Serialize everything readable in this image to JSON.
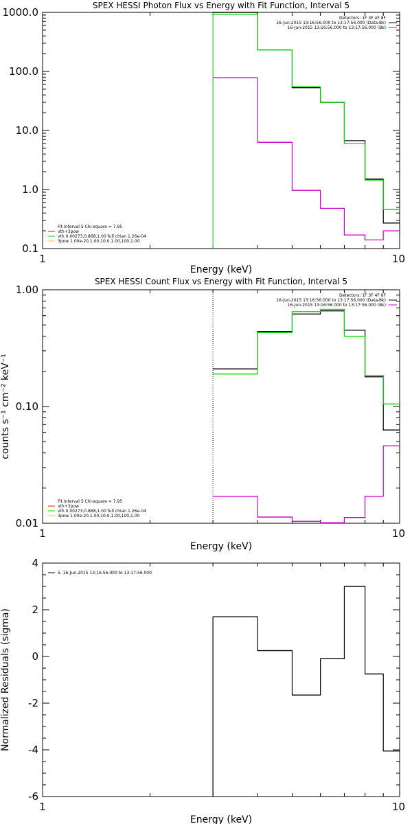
{
  "colors": {
    "data": "#000000",
    "bk": "#cc00cc",
    "total": "#00d800",
    "vth": "#ff0000",
    "pow": "#ffc800"
  },
  "chart_data": [
    {
      "type": "line",
      "title": "SPEX HESSI Photon Flux vs Energy with Fit Function, Interval 5",
      "xlabel": "Energy (keV)",
      "ylabel": "",
      "xscale": "log",
      "yscale": "log",
      "xlim": [
        1,
        10
      ],
      "ylim": [
        0.1,
        1000
      ],
      "x_ticks": [
        {
          "v": 1,
          "label": "1"
        },
        {
          "v": 10,
          "label": "10"
        }
      ],
      "y_ticks": [
        {
          "v": 0.1,
          "label": "0.1"
        },
        {
          "v": 1,
          "label": "1.0"
        },
        {
          "v": 10,
          "label": "10.0"
        },
        {
          "v": 100,
          "label": "100.0"
        },
        {
          "v": 1000,
          "label": "1000.0"
        }
      ],
      "x_edges": [
        3,
        4,
        5,
        6,
        7,
        8,
        9,
        10
      ],
      "series": [
        {
          "color_key": "data",
          "values": [
            1000,
            230,
            53,
            30,
            6.7,
            1.5,
            0.27
          ]
        },
        {
          "color_key": "total",
          "values": [
            930,
            230,
            55,
            30,
            6.0,
            1.45,
            0.46
          ]
        },
        {
          "color_key": "bk",
          "values": [
            78,
            6.3,
            0.97,
            0.48,
            0.17,
            0.14,
            0.2
          ]
        }
      ],
      "vlines": [
        {
          "x": 3,
          "color_key": "total",
          "dotted": false
        }
      ],
      "legend_right": {
        "lines": [
          {
            "text": "Detectors: 1F 3F 4F 8F",
            "color_key": ""
          },
          {
            "text": "16-Jun-2015 13:16:56.000 to 13:17:56.000 (Data-Bk)",
            "color_key": "data"
          },
          {
            "text": "16-Jun-2015 13:16:56.000 to 13:17:56.000 (Bk)",
            "color_key": "bk"
          }
        ]
      },
      "legend_left": {
        "lines": [
          {
            "text": "Fit Interval 5   Chi-square = 7.95",
            "color_key": ""
          },
          {
            "text": "vth+3pow",
            "color_key": "vth"
          },
          {
            "text": "vth 0.00273,0.868,1.00  full chian 1.26e-04",
            "color_key": "total"
          },
          {
            "text": "3pow 1.00e-20,1.00,10.0,1.00,100,1.00",
            "color_key": "pow"
          }
        ]
      }
    },
    {
      "type": "line",
      "title": "SPEX HESSI Count Flux vs Energy with Fit Function, Interval 5",
      "xlabel": "Energy (keV)",
      "ylabel": "counts s⁻¹ cm⁻² keV⁻¹",
      "xscale": "log",
      "yscale": "log",
      "xlim": [
        1,
        10
      ],
      "ylim": [
        0.01,
        1
      ],
      "x_ticks": [
        {
          "v": 1,
          "label": "1"
        },
        {
          "v": 10,
          "label": "10"
        }
      ],
      "y_ticks": [
        {
          "v": 0.01,
          "label": "0.01"
        },
        {
          "v": 0.1,
          "label": "0.10"
        },
        {
          "v": 1,
          "label": "1.00"
        }
      ],
      "x_edges": [
        3,
        4,
        5,
        6,
        7,
        8,
        9,
        10
      ],
      "series": [
        {
          "color_key": "data",
          "values": [
            0.21,
            0.44,
            0.62,
            0.66,
            0.45,
            0.18,
            0.063
          ]
        },
        {
          "color_key": "total",
          "values": [
            0.19,
            0.43,
            0.65,
            0.68,
            0.4,
            0.185,
            0.105
          ]
        },
        {
          "color_key": "bk",
          "values": [
            0.017,
            0.0113,
            0.0104,
            0.0101,
            0.0112,
            0.017,
            0.046
          ]
        }
      ],
      "vlines": [
        {
          "x": 3,
          "color_key": "data",
          "dotted": true
        }
      ],
      "legend_right": {
        "lines": [
          {
            "text": "Detectors: 1F 3F 4F 8F",
            "color_key": ""
          },
          {
            "text": "16-Jun-2015 13:16:56.000 to 13:17:56.000 (Data-Bk)",
            "color_key": "data"
          },
          {
            "text": "16-Jun-2015 13:16:56.000 to 13:17:56.000 (Bk)",
            "color_key": "bk"
          }
        ]
      },
      "legend_left": {
        "lines": [
          {
            "text": "Fit Interval 5   Chi-square = 7.95",
            "color_key": ""
          },
          {
            "text": "vth+3pow",
            "color_key": "vth"
          },
          {
            "text": "vth 0.00273,0.868,1.00  full chian 1.26e-04",
            "color_key": "total"
          },
          {
            "text": "3pow 1.00e-20,1.00,10.0,1.00,100,1.00",
            "color_key": "pow"
          }
        ]
      }
    },
    {
      "type": "line",
      "title": "",
      "xlabel": "Energy (keV)",
      "ylabel": "Normalized Residuals (sigma)",
      "xscale": "log",
      "yscale": "linear",
      "xlim": [
        1,
        10
      ],
      "ylim": [
        -6,
        4
      ],
      "x_ticks": [
        {
          "v": 1,
          "label": "1"
        },
        {
          "v": 10,
          "label": "10"
        }
      ],
      "y_ticks": [
        {
          "v": -6,
          "label": "-6"
        },
        {
          "v": -4,
          "label": "-4"
        },
        {
          "v": -2,
          "label": "-2"
        },
        {
          "v": 0,
          "label": "0"
        },
        {
          "v": 2,
          "label": "2"
        },
        {
          "v": 4,
          "label": "4"
        }
      ],
      "x_edges": [
        3,
        4,
        5,
        6,
        7,
        8,
        9,
        10
      ],
      "start_from_ymin": true,
      "series": [
        {
          "color_key": "data",
          "values": [
            1.7,
            0.25,
            -1.65,
            -0.1,
            3.0,
            -0.75,
            -4.05
          ]
        }
      ],
      "vlines": [],
      "legend_left_top": {
        "lines": [
          {
            "text": "5, 16-Jun-2015 13:16:56.000 to 13:17:56.000",
            "color_key": "data"
          }
        ]
      }
    }
  ]
}
